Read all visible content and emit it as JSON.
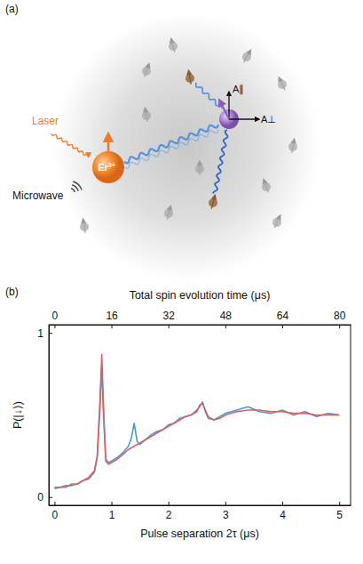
{
  "diagram": {
    "panel_label": "(a)",
    "laser_label": "Laser",
    "microwave_label": "Microwave",
    "ion_symbol": "Er",
    "ion_charge": "3+",
    "parallel_label": "A∥",
    "perp_label": "A⊥"
  },
  "chart_data": {
    "type": "line",
    "panel_label": "(b)",
    "x_label": "Pulse separation 2τ (μs)",
    "y_label": "P(|↓⟩)",
    "x2_label": "Total spin evolution time (μs)",
    "xlim": [
      -0.1,
      5.2
    ],
    "xticks": [
      0,
      1,
      2,
      3,
      4,
      5
    ],
    "x2lim": [
      -1.6,
      83.2
    ],
    "x2ticks": [
      0,
      16,
      32,
      48,
      64,
      80
    ],
    "ylim": [
      -0.05,
      1.05
    ],
    "yticks": [
      0,
      1
    ],
    "grid": false,
    "series": [
      {
        "color": "#4a9ad8",
        "x": [
          0,
          0.1,
          0.2,
          0.3,
          0.4,
          0.5,
          0.6,
          0.7,
          0.75,
          0.8,
          0.83,
          0.86,
          0.9,
          0.95,
          1.0,
          1.1,
          1.2,
          1.3,
          1.35,
          1.4,
          1.45,
          1.5,
          1.6,
          1.7,
          1.8,
          1.9,
          2.0,
          2.1,
          2.2,
          2.3,
          2.4,
          2.5,
          2.55,
          2.6,
          2.65,
          2.7,
          2.8,
          2.9,
          3.0,
          3.2,
          3.4,
          3.6,
          3.8,
          4.0,
          4.2,
          4.4,
          4.6,
          4.8,
          5.0
        ],
        "values": [
          0.05,
          0.06,
          0.06,
          0.08,
          0.08,
          0.1,
          0.11,
          0.15,
          0.24,
          0.55,
          0.8,
          0.5,
          0.23,
          0.21,
          0.22,
          0.24,
          0.27,
          0.31,
          0.36,
          0.45,
          0.34,
          0.32,
          0.35,
          0.38,
          0.4,
          0.41,
          0.44,
          0.45,
          0.48,
          0.49,
          0.5,
          0.53,
          0.55,
          0.58,
          0.52,
          0.48,
          0.47,
          0.49,
          0.51,
          0.53,
          0.55,
          0.52,
          0.51,
          0.53,
          0.5,
          0.52,
          0.49,
          0.51,
          0.5
        ]
      },
      {
        "color": "#d9625e",
        "x": [
          0,
          0.1,
          0.2,
          0.3,
          0.4,
          0.5,
          0.6,
          0.7,
          0.75,
          0.8,
          0.83,
          0.86,
          0.9,
          0.95,
          1.0,
          1.1,
          1.2,
          1.3,
          1.4,
          1.5,
          1.6,
          1.7,
          1.8,
          1.9,
          2.0,
          2.1,
          2.2,
          2.3,
          2.4,
          2.5,
          2.55,
          2.6,
          2.65,
          2.7,
          2.8,
          2.9,
          3.0,
          3.2,
          3.4,
          3.6,
          3.8,
          4.0,
          4.2,
          4.4,
          4.6,
          4.8,
          5.0
        ],
        "values": [
          0.06,
          0.06,
          0.07,
          0.07,
          0.08,
          0.1,
          0.12,
          0.16,
          0.25,
          0.6,
          0.87,
          0.55,
          0.22,
          0.2,
          0.21,
          0.23,
          0.26,
          0.29,
          0.31,
          0.33,
          0.35,
          0.37,
          0.39,
          0.41,
          0.43,
          0.45,
          0.47,
          0.49,
          0.5,
          0.52,
          0.56,
          0.57,
          0.53,
          0.49,
          0.47,
          0.48,
          0.5,
          0.52,
          0.53,
          0.53,
          0.52,
          0.52,
          0.51,
          0.51,
          0.5,
          0.5,
          0.5
        ]
      }
    ]
  }
}
